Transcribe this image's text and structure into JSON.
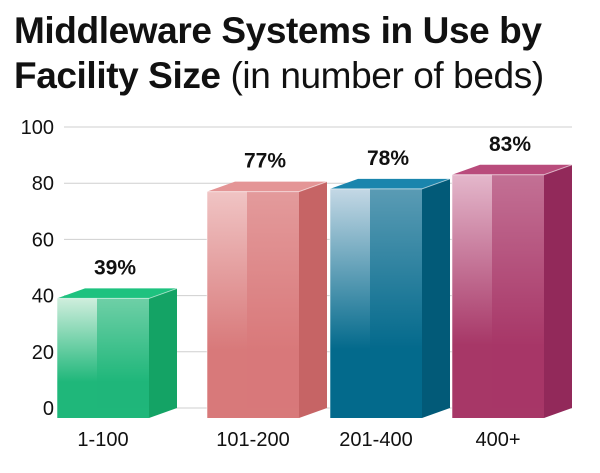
{
  "title": {
    "line1": "Middleware Systems in Use by",
    "line2_bold": "Facility Size",
    "line2_light": "(in number of beds)"
  },
  "chart_data": {
    "type": "bar",
    "categories": [
      "1-100",
      "101-200",
      "201-400",
      "400+"
    ],
    "values": [
      39,
      77,
      78,
      83
    ],
    "value_labels": [
      "39%",
      "77%",
      "78%",
      "83%"
    ],
    "ylim": [
      0,
      100
    ],
    "yticks": [
      0,
      20,
      40,
      60,
      80,
      100
    ],
    "grid": true,
    "legend": "none",
    "colors": {
      "front": [
        "#1fb77a",
        "#d8797a",
        "#036a8c",
        "#a73767"
      ],
      "top": [
        "#1ec27f",
        "#e49596",
        "#1a85ad",
        "#b94c7c"
      ],
      "side": [
        "#14a365",
        "#c66465",
        "#025a78",
        "#92295a"
      ],
      "highlight": [
        "#cfeedd",
        "#f0c4c4",
        "#c4d8e5",
        "#e4b7cb"
      ]
    },
    "grid_color": "#cfcfcf",
    "text_color": "#111111"
  }
}
